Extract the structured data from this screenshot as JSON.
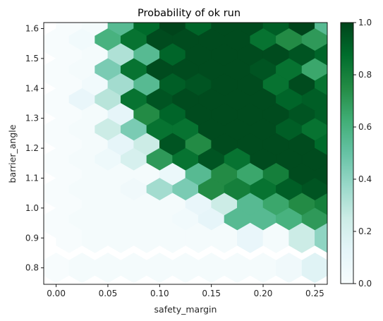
{
  "chart_data": {
    "type": "heatmap",
    "subtype": "hexbin",
    "title": "Probability of ok run",
    "xlabel": "safety_margin",
    "ylabel": "barrier_angle",
    "xlim": [
      -0.012,
      0.262
    ],
    "ylim": [
      0.745,
      1.62
    ],
    "x_ticks": [
      0.0,
      0.05,
      0.1,
      0.15,
      0.2,
      0.25
    ],
    "x_tick_labels": [
      "0.00",
      "0.05",
      "0.10",
      "0.15",
      "0.20",
      "0.25"
    ],
    "y_ticks": [
      0.8,
      0.9,
      1.0,
      1.1,
      1.2,
      1.3,
      1.4,
      1.5,
      1.6
    ],
    "y_tick_labels": [
      "0.8",
      "0.9",
      "1.0",
      "1.1",
      "1.2",
      "1.3",
      "1.4",
      "1.5",
      "1.6"
    ],
    "colorbar": {
      "colormap": "BuGn",
      "vmin": 0.0,
      "vmax": 1.0,
      "ticks": [
        0.0,
        0.2,
        0.4,
        0.6,
        0.8,
        1.0
      ],
      "tick_labels": [
        "0.0",
        "0.2",
        "0.4",
        "0.6",
        "0.8",
        "1.0"
      ]
    },
    "grid": false,
    "hex_grid": {
      "x0": 0.0,
      "dx": 0.025,
      "y0": 0.775,
      "dy": 0.105
    },
    "cell_rows": [
      {
        "row": 15,
        "y": 1.6,
        "values": [
          0.0,
          0.02,
          0.55,
          0.88,
          1.0,
          0.9,
          0.98,
          0.98,
          0.92,
          1.0,
          0.55,
          0.45,
          0.35,
          0.18,
          null
        ]
      },
      {
        "row": 14,
        "y": 1.55,
        "values": [
          0.0,
          0.04,
          0.6,
          0.85,
          0.98,
          0.98,
          0.98,
          0.98,
          0.85,
          0.75,
          0.7,
          0.4,
          0.15,
          null
        ]
      },
      {
        "row": 13,
        "y": 1.5,
        "values": [
          0.0,
          0.02,
          0.32,
          0.55,
          0.9,
          0.98,
          0.98,
          0.98,
          0.98,
          0.95,
          0.9,
          0.55,
          0.35,
          0.2,
          null
        ]
      },
      {
        "row": 12,
        "y": 1.45,
        "values": [
          0.0,
          0.02,
          0.45,
          0.85,
          0.98,
          0.98,
          0.98,
          0.98,
          0.95,
          0.85,
          0.65,
          0.45,
          0.35,
          null
        ]
      },
      {
        "row": 11,
        "y": 1.4,
        "values": [
          0.0,
          0.04,
          0.35,
          0.55,
          0.92,
          0.95,
          0.98,
          0.98,
          0.85,
          0.98,
          0.85,
          0.7,
          0.55,
          0.65,
          0.98
        ]
      },
      {
        "row": 10,
        "y": 1.35,
        "values": [
          0.0,
          0.1,
          0.3,
          0.85,
          0.95,
          0.98,
          0.98,
          0.98,
          0.98,
          0.9,
          0.92,
          0.85,
          0.45,
          null
        ]
      },
      {
        "row": 9,
        "y": 1.3,
        "values": [
          0.0,
          0.02,
          0.12,
          0.75,
          0.9,
          0.98,
          0.98,
          0.98,
          0.98,
          0.95,
          0.92,
          0.88,
          0.85,
          0.75,
          0.7
        ]
      },
      {
        "row": 8,
        "y": 1.25,
        "values": [
          0.0,
          0.02,
          0.25,
          0.45,
          0.85,
          0.85,
          0.98,
          0.98,
          0.98,
          0.92,
          0.85,
          0.75,
          0.6,
          null
        ]
      },
      {
        "row": 7,
        "y": 1.2,
        "values": [
          0.0,
          0.02,
          0.12,
          0.25,
          0.95,
          0.75,
          0.98,
          0.98,
          0.98,
          0.98,
          0.88,
          0.9,
          0.85,
          0.75,
          0.98
        ]
      },
      {
        "row": 6,
        "y": 1.15,
        "values": [
          0.0,
          0.02,
          0.06,
          0.2,
          0.7,
          0.85,
          0.95,
          0.85,
          0.98,
          0.98,
          0.98,
          0.92,
          0.98,
          0.8,
          null
        ]
      },
      {
        "row": 5,
        "y": 1.1,
        "values": [
          0.0,
          0.02,
          0.02,
          0.02,
          0.08,
          0.55,
          0.75,
          0.65,
          0.8,
          0.98,
          0.98,
          0.98,
          0.85,
          0.85,
          0.88
        ]
      },
      {
        "row": 4,
        "y": 1.05,
        "values": [
          0.0,
          0.02,
          0.02,
          0.05,
          0.35,
          0.45,
          0.75,
          0.8,
          0.85,
          0.92,
          0.95,
          0.9,
          0.98,
          null
        ]
      },
      {
        "row": 3,
        "y": 1.0,
        "values": [
          0.0,
          0.02,
          0.02,
          0.02,
          0.02,
          0.1,
          0.25,
          0.55,
          0.65,
          0.75,
          0.8,
          0.9,
          0.75,
          0.8,
          0.92
        ]
      },
      {
        "row": 2,
        "y": 0.95,
        "values": [
          0.0,
          0.02,
          0.02,
          0.02,
          0.02,
          0.04,
          0.12,
          0.55,
          0.55,
          0.6,
          0.7,
          0.75,
          0.65,
          null
        ]
      },
      {
        "row": 1,
        "y": 0.9,
        "values": [
          0.0,
          0.02,
          0.02,
          0.02,
          0.02,
          0.02,
          0.02,
          0.1,
          0.02,
          0.25,
          0.4,
          0.45,
          0.25,
          0.2,
          null
        ]
      },
      {
        "row": 0,
        "y": 0.8,
        "values": [
          0.0,
          0.02,
          0.02,
          0.02,
          0.02,
          0.02,
          0.02,
          0.02,
          0.02,
          0.05,
          0.15,
          0.25,
          0.25,
          0.1,
          null
        ]
      }
    ]
  }
}
